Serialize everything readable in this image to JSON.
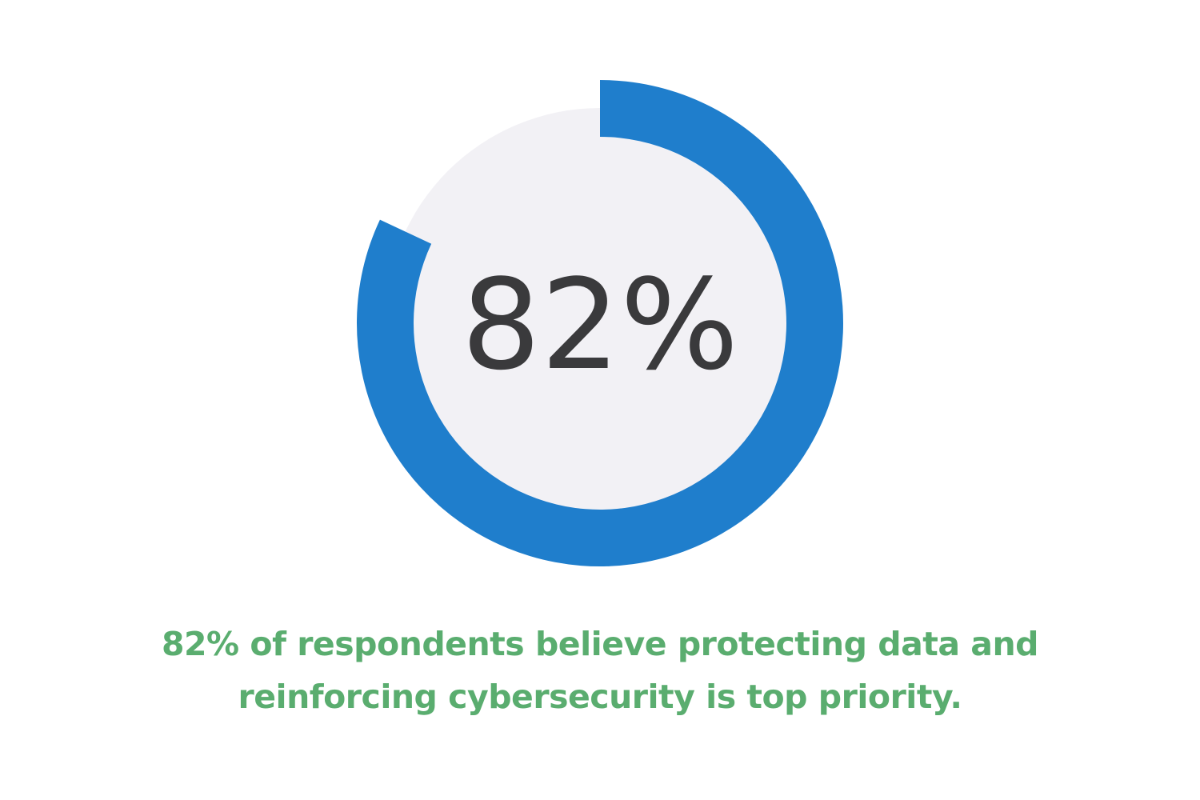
{
  "chart_data": {
    "type": "pie",
    "variant": "donut-progress",
    "value": 82,
    "max": 100,
    "center_label": "82%",
    "start": "top",
    "direction": "clockwise",
    "colors": {
      "progress": "#1f7ecc",
      "inner_disc": "#f2f1f5"
    }
  },
  "caption": {
    "lines": [
      "82% of respondents believe protecting data and",
      "reinforcing cybersecurity is top priority."
    ],
    "color": "#5aad6f"
  }
}
